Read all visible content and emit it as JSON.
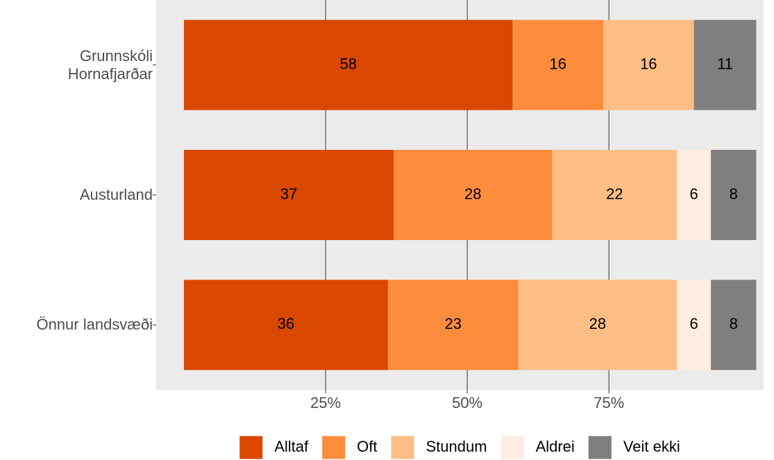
{
  "chart_data": {
    "type": "stacked-bar-horizontal",
    "categories": [
      "Grunnskóli\nHornafjarðar",
      "Austurland",
      "Önnur landsvæði"
    ],
    "series": [
      {
        "name": "Alltaf",
        "color": "#d94701",
        "values": [
          58,
          37,
          36
        ]
      },
      {
        "name": "Oft",
        "color": "#fd8d3c",
        "values": [
          16,
          28,
          23
        ]
      },
      {
        "name": "Stundum",
        "color": "#fdbe85",
        "values": [
          16,
          22,
          28
        ]
      },
      {
        "name": "Aldrei",
        "color": "#feede0",
        "values": [
          null,
          6,
          6
        ]
      },
      {
        "name": "Veit ekki",
        "color": "#7f7f7f",
        "values": [
          11,
          8,
          8
        ]
      }
    ],
    "xlim": [
      -4.9,
      102.3
    ],
    "xticks": [
      {
        "value": 25,
        "label": "25%"
      },
      {
        "value": 50,
        "label": "50%"
      },
      {
        "value": 75,
        "label": "75%"
      }
    ],
    "grid": true,
    "legend": "bottom"
  }
}
